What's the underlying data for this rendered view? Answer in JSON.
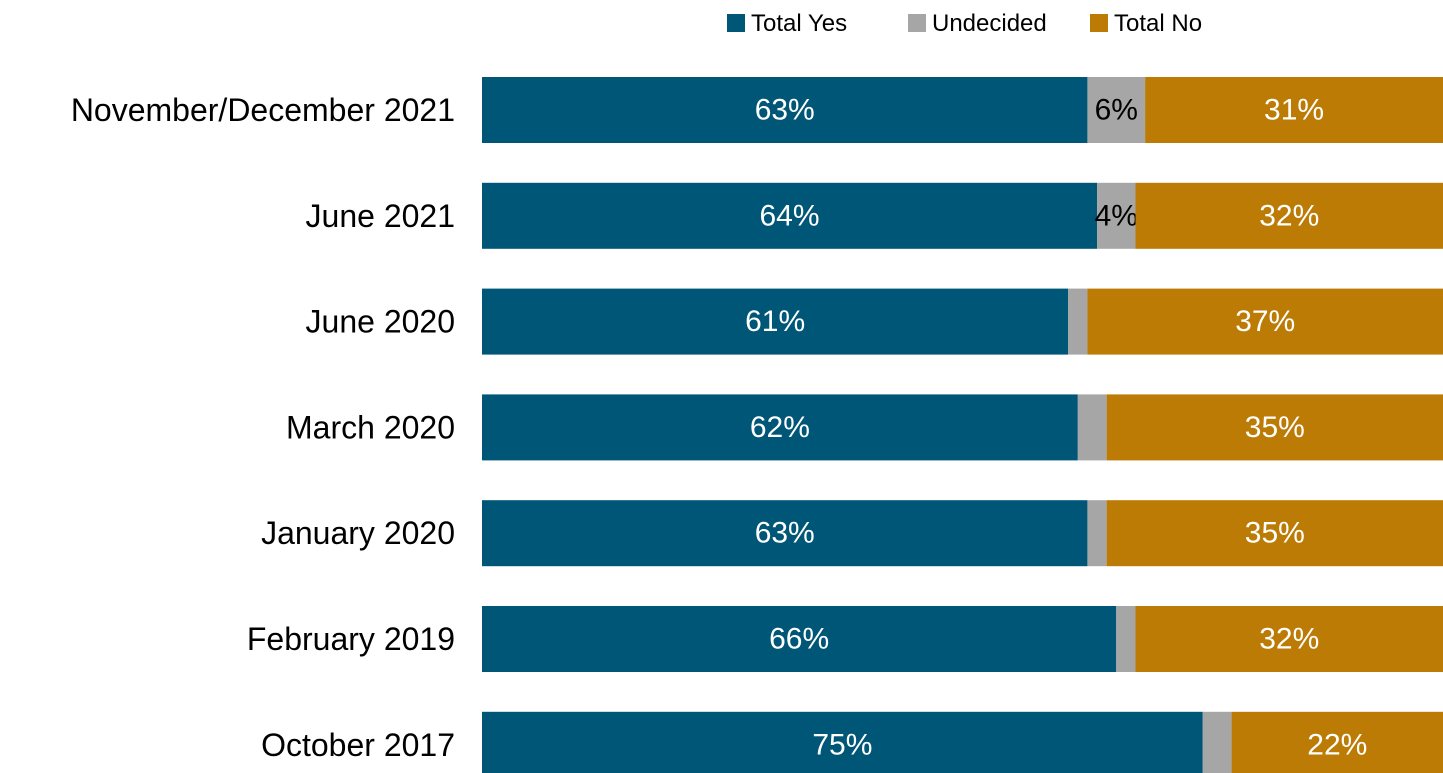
{
  "chart_data": {
    "type": "bar",
    "orientation": "horizontal",
    "stacked": true,
    "legend_position": "top",
    "categories": [
      "November/December 2021",
      "June 2021",
      "June 2020",
      "March 2020",
      "January 2020",
      "February 2019",
      "October 2017"
    ],
    "series": [
      {
        "name": "Total Yes",
        "color": "#005677",
        "values": [
          63,
          64,
          61,
          62,
          63,
          66,
          75
        ],
        "labels": [
          "63%",
          "64%",
          "61%",
          "62%",
          "63%",
          "66%",
          "75%"
        ]
      },
      {
        "name": "Undecided",
        "color": "#a6a6a6",
        "values": [
          6,
          4,
          2,
          3,
          2,
          2,
          3
        ],
        "labels": [
          "6%",
          "4%",
          "",
          "",
          "",
          "",
          ""
        ]
      },
      {
        "name": "Total No",
        "color": "#bc7b05",
        "values": [
          31,
          32,
          37,
          35,
          35,
          32,
          22
        ],
        "labels": [
          "31%",
          "32%",
          "37%",
          "35%",
          "35%",
          "32%",
          "22%"
        ]
      }
    ],
    "xlim": [
      0,
      100
    ],
    "grid": false
  }
}
